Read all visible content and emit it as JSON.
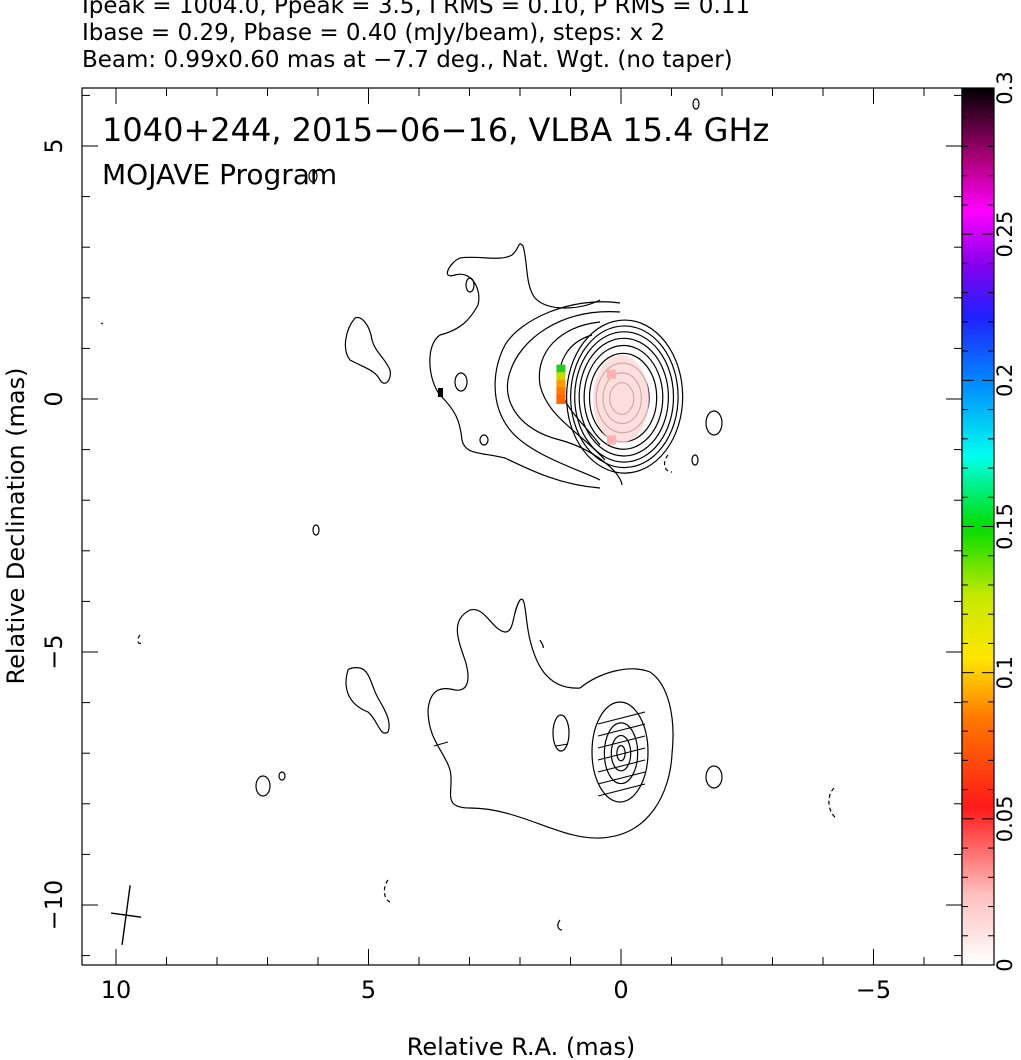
{
  "header": {
    "line1": "Ipeak = 1004.0, Ppeak = 3.5, I RMS = 0.10, P RMS = 0.11",
    "line2": "Ibase = 0.29, Pbase = 0.40 (mJy/beam), steps: x 2",
    "line3": "Beam: 0.99x0.60 mas at −7.7 deg., Nat. Wgt. (no taper)"
  },
  "chart_data": {
    "type": "heatmap",
    "title_line1": "1040+244, 2015−06−16, VLBA 15.4 GHz",
    "title_line2": "MOJAVE Program",
    "xlabel": "Relative R.A. (mas)",
    "ylabel": "Relative Declination (mas)",
    "xlim": [
      10.7,
      -6.5
    ],
    "ylim": [
      -11.2,
      6.2
    ],
    "x_ticks": [
      "10",
      "5",
      "0",
      "−5"
    ],
    "x_tick_values": [
      10,
      5,
      0,
      -5
    ],
    "y_ticks": [
      "5",
      "0",
      "−5",
      "−10"
    ],
    "y_tick_values": [
      5,
      0,
      -5,
      -10
    ],
    "colorbar": {
      "range": [
        0,
        0.3
      ],
      "ticks": [
        "0",
        "0.05",
        "0.1",
        "0.15",
        "0.2",
        "0.25",
        "0.3"
      ],
      "tick_values": [
        0,
        0.05,
        0.1,
        0.15,
        0.2,
        0.25,
        0.3
      ]
    },
    "beam": {
      "major_mas": 0.99,
      "minor_mas": 0.6,
      "pa_deg": -7.7,
      "center": [
        9.8,
        -10.2
      ]
    },
    "core_upper": {
      "x": 0,
      "y": 0,
      "contour_radii_mas": [
        0.25,
        0.4,
        0.55,
        0.7,
        0.82,
        0.93,
        1.03,
        1.12,
        1.21
      ]
    },
    "core_lower": {
      "x": 0,
      "y": -7,
      "contour_radii_mas": [
        0.15,
        0.35,
        0.6
      ]
    },
    "polarization_pixels": [
      {
        "x": 1.2,
        "y": 0.6,
        "color": "#22cc22"
      },
      {
        "x": 1.2,
        "y": 0.45,
        "color": "#c8d800"
      },
      {
        "x": 1.2,
        "y": 0.3,
        "color": "#ff9900"
      },
      {
        "x": 1.2,
        "y": 0.15,
        "color": "#ff7700"
      },
      {
        "x": 1.2,
        "y": 0.0,
        "color": "#ff6600"
      },
      {
        "x": 0.2,
        "y": 0.5,
        "color": "#ffb0b0"
      },
      {
        "x": 0.2,
        "y": -0.8,
        "color": "#ffb0b0"
      }
    ]
  }
}
